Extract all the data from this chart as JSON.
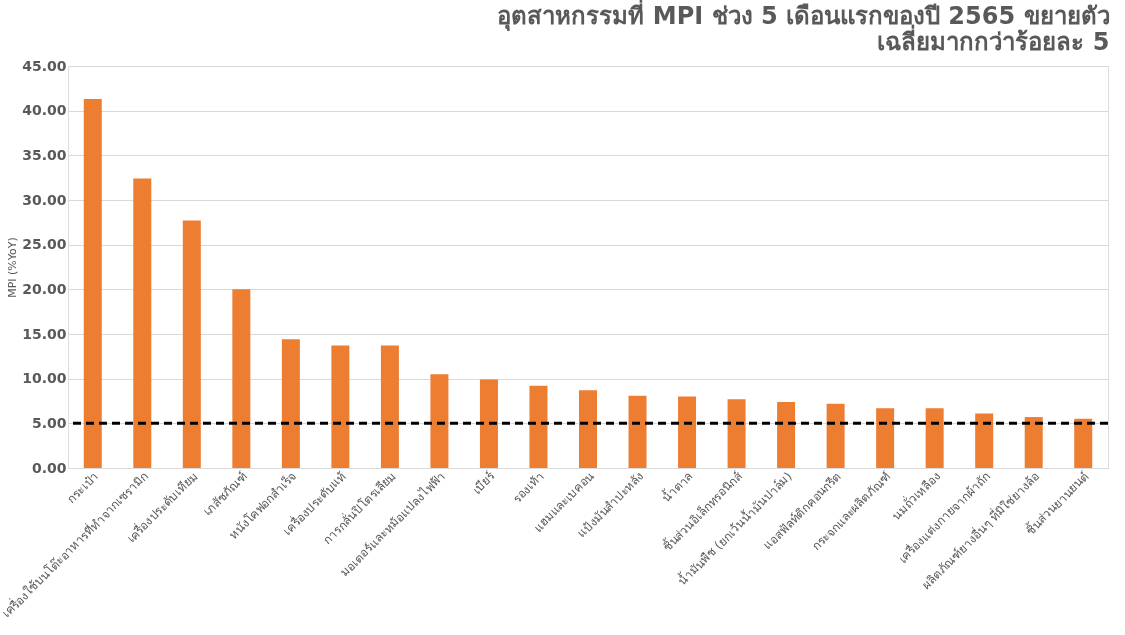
{
  "chart_data": {
    "type": "bar",
    "title": [
      "อุตสาหกรรมที่ MPI ช่วง 5 เดือนแรกของปี 2565 ขยายตัว",
      "เฉลี่ยมากกว่าร้อยละ 5"
    ],
    "ylabel": "MPI (%YoY)",
    "categories": [
      "กระเป๋า",
      "เครื่องใช้บนโต๊ะอาหารที่ทำจากเซรามิก",
      "เครื่องประดับเทียม",
      "เภสัชภัณฑ์",
      "หนังโคฟอกสำเร็จ",
      "เครื่องประดับแท้",
      "การกลั่นปิโตรเลียม",
      "มอเตอร์และหม้อแปลงไฟฟ้า",
      "เบียร์",
      "รองเท้า",
      "แฮมและเบคอน",
      "แป้งมันสำปะหลัง",
      "น้ำตาล",
      "ชิ้นส่วนอิเล็กทรอนิกส์",
      "น้ำมันพืช (ยกเว้นน้ำมันปาล์ม)",
      "แอสฟัลท์ติกคอนกรีต",
      "กระจกและผลิตภัณฑ์",
      "นมถั่วเหลือง",
      "เครื่องแต่งกายจากผ้าถัก",
      "ผลิตภัณฑ์ยางอื่นๆ ที่มิใช่ยางล้อ",
      "ชิ้นส่วนยานยนต์"
    ],
    "series": [
      {
        "color": "#ed7d31",
        "values": [
          41.3,
          32.4,
          27.7,
          20.0,
          14.4,
          13.7,
          13.7,
          10.5,
          9.9,
          9.2,
          8.7,
          8.1,
          8.0,
          7.7,
          7.4,
          7.2,
          6.7,
          6.7,
          6.1,
          5.7,
          5.5
        ]
      }
    ],
    "ylim": [
      0,
      45
    ],
    "yticks": [
      {
        "value": 0,
        "label": "0.00"
      },
      {
        "value": 5,
        "label": "5.00"
      },
      {
        "value": 10,
        "label": "10.00"
      },
      {
        "value": 15,
        "label": "15.00"
      },
      {
        "value": 20,
        "label": "20.00"
      },
      {
        "value": 25,
        "label": "25.00"
      },
      {
        "value": 30,
        "label": "30.00"
      },
      {
        "value": 35,
        "label": "35.00"
      },
      {
        "value": 40,
        "label": "40.00"
      },
      {
        "value": 45,
        "label": "45.00"
      }
    ],
    "ref_lines": [
      {
        "axis": "y",
        "value": 5,
        "color": "#000000",
        "line_style": "dashed"
      }
    ],
    "grid": "y"
  }
}
